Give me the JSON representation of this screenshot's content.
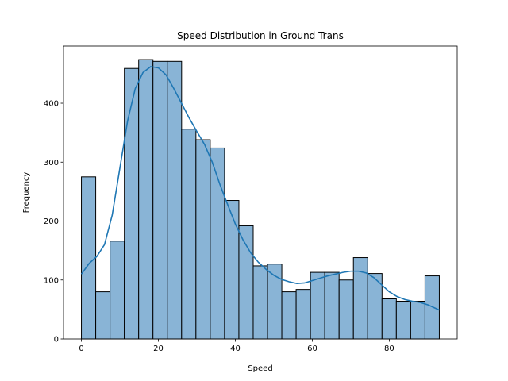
{
  "chart_data": {
    "type": "bar",
    "subtype": "histogram-with-kde",
    "title": "Speed Distribution in Ground Trans",
    "xlabel": "Speed",
    "ylabel": "Frequency",
    "xlim": [
      -4.65,
      97.65
    ],
    "ylim": [
      0,
      497
    ],
    "xticks": [
      0,
      20,
      40,
      60,
      80
    ],
    "yticks": [
      0,
      100,
      200,
      300,
      400
    ],
    "grid": false,
    "legend": "none",
    "bar_color": "#89b4d6",
    "edge_color": "#000000",
    "kde_color": "#1f77b4",
    "bin_edges": [
      0,
      3.72,
      7.44,
      11.16,
      14.88,
      18.6,
      22.32,
      26.04,
      29.76,
      33.48,
      37.2,
      40.92,
      44.64,
      48.36,
      52.08,
      55.8,
      59.52,
      63.24,
      66.96,
      70.68,
      74.4,
      78.12,
      81.84,
      85.56,
      89.28,
      93.0
    ],
    "counts": [
      275,
      80,
      166,
      459,
      474,
      471,
      471,
      356,
      338,
      324,
      235,
      192,
      124,
      127,
      80,
      84,
      113,
      113,
      100,
      138,
      111,
      68,
      64,
      64,
      107
    ],
    "kde": {
      "x": [
        0,
        2,
        4,
        6,
        8,
        10,
        12,
        14,
        16,
        18,
        20,
        22,
        24,
        26,
        28,
        30,
        32,
        34,
        36,
        38,
        40,
        42,
        44,
        46,
        48,
        50,
        52,
        54,
        56,
        58,
        60,
        62,
        64,
        66,
        68,
        70,
        72,
        74,
        76,
        78,
        80,
        82,
        84,
        86,
        88,
        90,
        92,
        93
      ],
      "y": [
        110,
        128,
        140,
        160,
        210,
        290,
        370,
        425,
        452,
        462,
        460,
        448,
        425,
        400,
        375,
        352,
        330,
        300,
        262,
        228,
        195,
        168,
        146,
        130,
        118,
        108,
        101,
        97,
        94,
        95,
        99,
        103,
        107,
        110,
        113,
        115,
        115,
        112,
        104,
        92,
        80,
        72,
        67,
        64,
        62,
        58,
        52,
        49
      ]
    }
  }
}
